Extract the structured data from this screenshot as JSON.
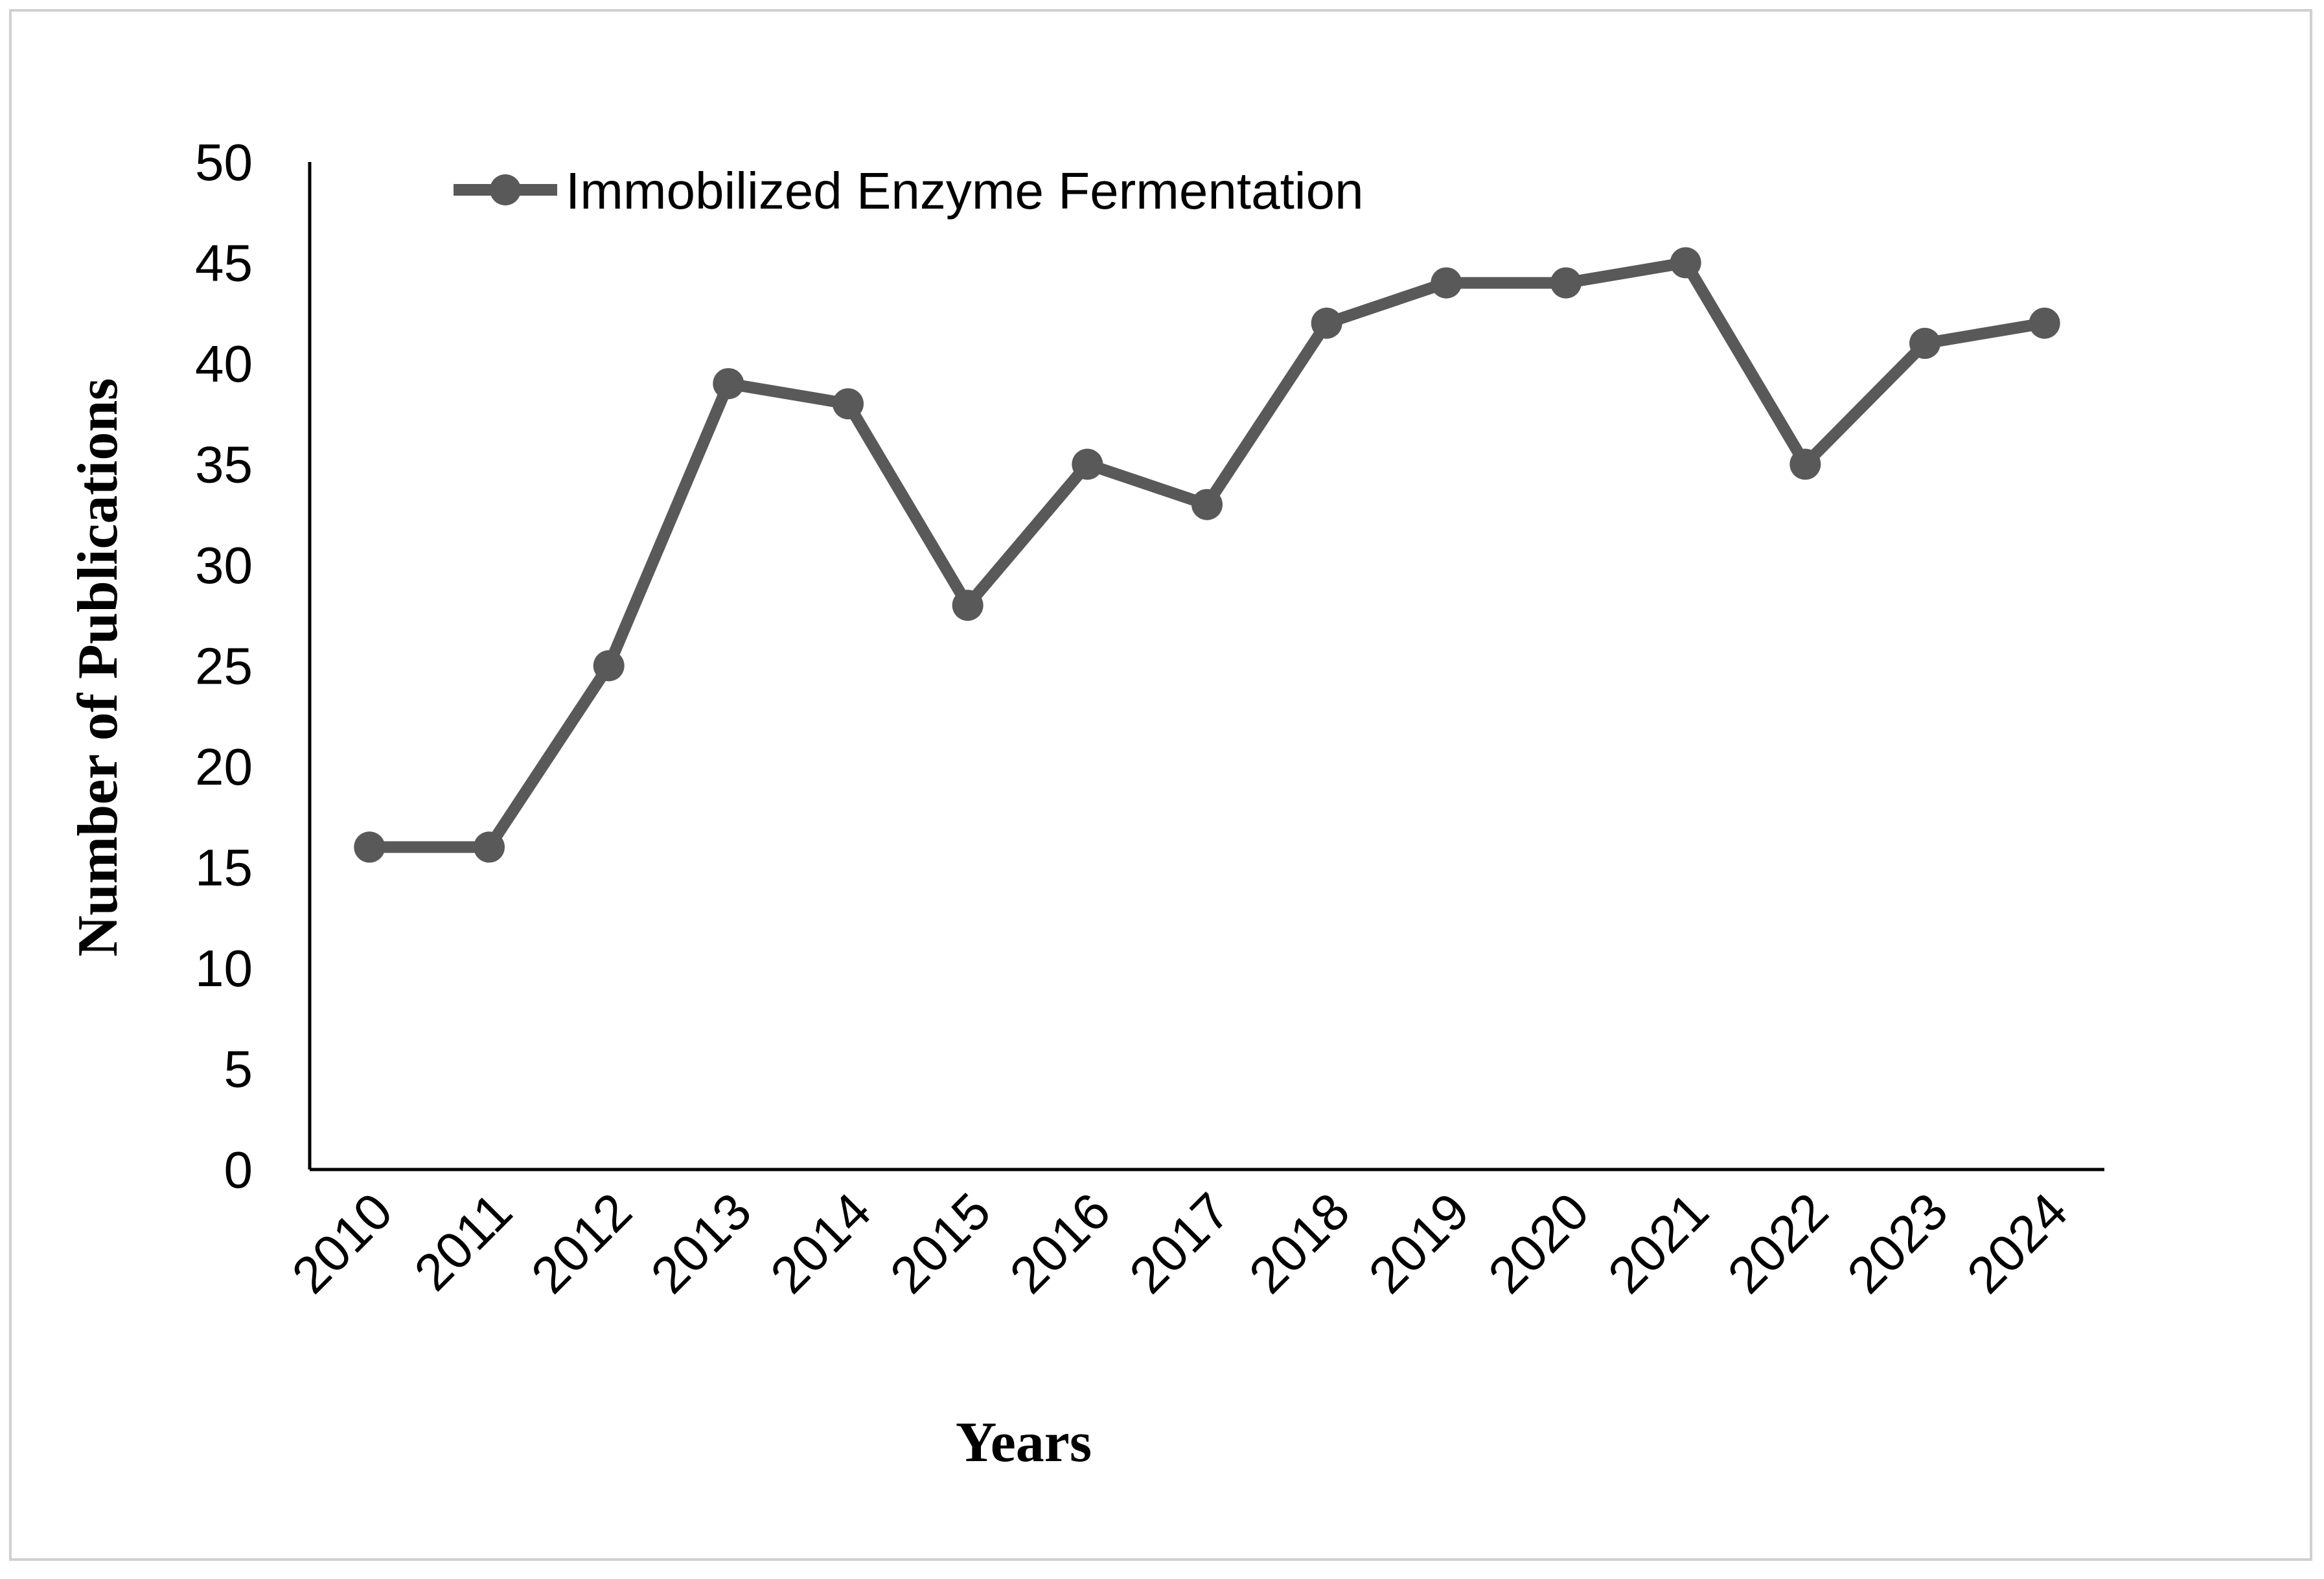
{
  "chart_data": {
    "type": "line",
    "title": "",
    "xlabel": "Years",
    "ylabel": "Number of Publications",
    "ylim": [
      0,
      50
    ],
    "yticks": [
      0,
      5,
      10,
      15,
      20,
      25,
      30,
      35,
      40,
      45,
      50
    ],
    "grid": false,
    "legend_position": "top-left",
    "categories": [
      "2010",
      "2011",
      "2012",
      "2013",
      "2014",
      "2015",
      "2016",
      "2017",
      "2018",
      "2019",
      "2020",
      "2021",
      "2022",
      "2023",
      "2024"
    ],
    "series": [
      {
        "name": "Immobilized Enzyme Fermentation",
        "color": "#595959",
        "values": [
          16,
          16,
          25,
          39,
          38,
          28,
          35,
          33,
          42,
          44,
          44,
          45,
          35,
          41,
          42
        ]
      }
    ]
  }
}
